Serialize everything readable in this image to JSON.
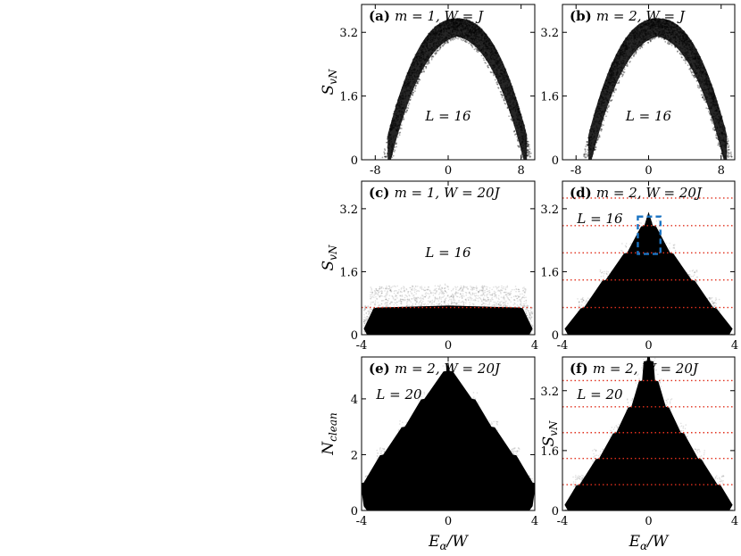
{
  "chart_data": [
    {
      "id": "a",
      "type": "scatter",
      "panel_label": "(a)",
      "title": "m = 1,  W = J",
      "annotation": "L = 16",
      "xlabel": "",
      "ylabel": "S_vN",
      "xlim": [
        -9.5,
        9.5
      ],
      "ylim": [
        0,
        3.9
      ],
      "xticks": [
        -8,
        0,
        8
      ],
      "xtick_labels": [
        "-8",
        "0",
        "8"
      ],
      "yticks": [
        0,
        1.6,
        3.2
      ],
      "ytick_labels": [
        "0",
        "1.6",
        "3.2"
      ],
      "shape": "arch",
      "center_x": 1,
      "half_width": 8.3,
      "peak_y": 3.55,
      "peak_thickness": 0.45,
      "hlines": [],
      "box": null
    },
    {
      "id": "b",
      "type": "scatter",
      "panel_label": "(b)",
      "title": "m = 2,  W = J",
      "annotation": "L = 16",
      "xlabel": "",
      "ylabel": "",
      "xlim": [
        -9.5,
        9.5
      ],
      "ylim": [
        0,
        3.9
      ],
      "xticks": [
        -8,
        0,
        8
      ],
      "xtick_labels": [
        "-8",
        "0",
        "8"
      ],
      "yticks": [
        0,
        1.6,
        3.2
      ],
      "ytick_labels": [
        "0",
        "1.6",
        "3.2"
      ],
      "shape": "arch",
      "center_x": 1,
      "half_width": 8.3,
      "peak_y": 3.55,
      "peak_thickness": 0.45,
      "hlines": [],
      "box": null
    },
    {
      "id": "c",
      "type": "scatter",
      "panel_label": "(c)",
      "title": "m = 1,  W = 20J",
      "annotation": "L = 16",
      "xlabel": "",
      "ylabel": "S_vN",
      "xlim": [
        -4,
        4
      ],
      "ylim": [
        0,
        3.9
      ],
      "xticks": [
        -4,
        0,
        4
      ],
      "xtick_labels": [
        "-4",
        "0",
        "4"
      ],
      "yticks": [
        0,
        1.6,
        3.2
      ],
      "ytick_labels": [
        "0",
        "1.6",
        "3.2"
      ],
      "shape": "mound",
      "steps": [
        [
          0.69,
          3.3,
          2.9
        ]
      ],
      "hlines": [
        0.69
      ],
      "box": null
    },
    {
      "id": "d",
      "type": "scatter",
      "panel_label": "(d)",
      "title": "m = 2,  W = 20J",
      "annotation": "L = 16",
      "xlabel": "",
      "ylabel": "",
      "xlim": [
        -4,
        4
      ],
      "ylim": [
        0,
        3.9
      ],
      "xticks": [
        -4,
        0,
        4
      ],
      "xtick_labels": [
        "-4",
        "0",
        "4"
      ],
      "yticks": [
        0,
        1.6,
        3.2
      ],
      "ytick_labels": [
        "0",
        "1.6",
        "3.2"
      ],
      "shape": "staircase",
      "steps": [
        [
          0.69,
          3.0,
          3.6
        ],
        [
          1.39,
          2.0,
          2.6
        ],
        [
          2.08,
          1.0,
          1.6
        ],
        [
          2.77,
          0.2,
          0.6
        ]
      ],
      "hlines": [
        0.69,
        1.39,
        2.08,
        2.77,
        3.47
      ],
      "box": {
        "x": [
          -0.5,
          0.55
        ],
        "y": [
          2.05,
          3.0
        ]
      }
    },
    {
      "id": "e",
      "type": "scatter",
      "panel_label": "(e)",
      "title": "m = 2,  W = 20J",
      "annotation": "L = 20",
      "xlabel": "E_α/W",
      "ylabel": "N_clean",
      "xlim": [
        -4,
        4
      ],
      "ylim": [
        0,
        5.5
      ],
      "xticks": [
        -4,
        0,
        4
      ],
      "xtick_labels": [
        "-4",
        "0",
        "4"
      ],
      "yticks": [
        0,
        2,
        4
      ],
      "ytick_labels": [
        "0",
        "2",
        "4"
      ],
      "shape": "ncount",
      "steps": [
        [
          1,
          4.0,
          3.6
        ],
        [
          2,
          3.0,
          2.6
        ],
        [
          3,
          2.0,
          1.7
        ],
        [
          4,
          1.1,
          0.9
        ],
        [
          5,
          0.07,
          0.2
        ]
      ],
      "hlines": [],
      "box": null
    },
    {
      "id": "f",
      "type": "scatter",
      "panel_label": "(f)",
      "title": "m = 2,  W = 20J",
      "annotation": "L = 20",
      "xlabel": "E_α/W",
      "ylabel": "S_vN",
      "xlim": [
        -4,
        4
      ],
      "ylim": [
        0,
        4.1
      ],
      "xticks": [
        -4,
        0,
        4
      ],
      "xtick_labels": [
        "-4",
        "0",
        "4"
      ],
      "yticks": [
        0,
        1.6,
        3.2
      ],
      "ytick_labels": [
        "0",
        "1.6",
        "3.2"
      ],
      "shape": "staircase",
      "steps": [
        [
          0.69,
          3.2,
          3.6
        ],
        [
          1.39,
          2.3,
          2.8
        ],
        [
          2.08,
          1.5,
          1.9
        ],
        [
          2.77,
          0.8,
          1.1
        ],
        [
          3.47,
          0.3,
          0.5
        ],
        [
          4.0,
          0.08,
          0.2
        ]
      ],
      "hlines": [
        0.69,
        1.39,
        2.08,
        2.77,
        3.47
      ],
      "box": null
    }
  ]
}
